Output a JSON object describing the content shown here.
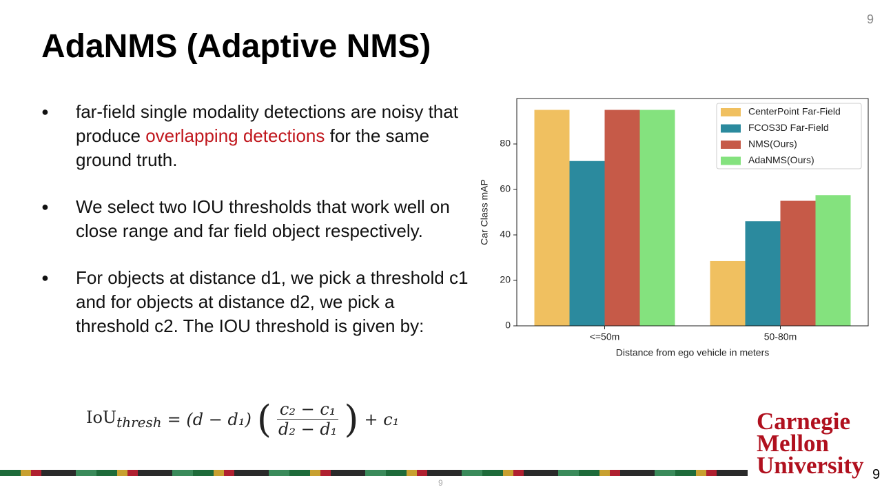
{
  "slide": {
    "title": "AdaNMS (Adaptive NMS)",
    "page_number": "9",
    "bullets": [
      {
        "parts": [
          "far-field single modality detections are noisy that produce ",
          "overlapping detections",
          " for the same ground truth."
        ]
      },
      {
        "parts": [
          "We select two IOU thresholds that work well on close range and far field object respectively."
        ]
      },
      {
        "parts": [
          "For objects at distance d1, we pick a threshold c1 and for objects at distance d2, we pick a threshold c2. The IOU threshold is given by:"
        ]
      }
    ],
    "formula": {
      "lhs": "IoU",
      "lhs_sub": "thresh",
      "mid": "= (d − d₁)",
      "num": "c₂ − c₁",
      "den": "d₂ − d₁",
      "tail": "+ c₁"
    },
    "logo": [
      "Carnegie",
      "Mellon",
      "University"
    ],
    "footer_page": "9",
    "corner_page": "9"
  },
  "chart_data": {
    "type": "bar",
    "categories": [
      "<=50m",
      "50-80m"
    ],
    "series": [
      {
        "name": "CenterPoint Far-Field",
        "color": "#f0c060",
        "values": [
          95,
          28.5
        ]
      },
      {
        "name": "FCOS3D Far-Field",
        "color": "#2b8a9e",
        "values": [
          72.5,
          46
        ]
      },
      {
        "name": "NMS(Ours)",
        "color": "#c65a48",
        "values": [
          95,
          55
        ]
      },
      {
        "name": "AdaNMS(Ours)",
        "color": "#84e27e",
        "values": [
          95,
          57.5
        ]
      }
    ],
    "x_label": "Distance from ego vehicle in meters",
    "y_label": "Car Class mAP",
    "ylim": [
      0,
      100
    ],
    "yticks": [
      0,
      20,
      40,
      60,
      80
    ],
    "legend": "upper-right"
  }
}
